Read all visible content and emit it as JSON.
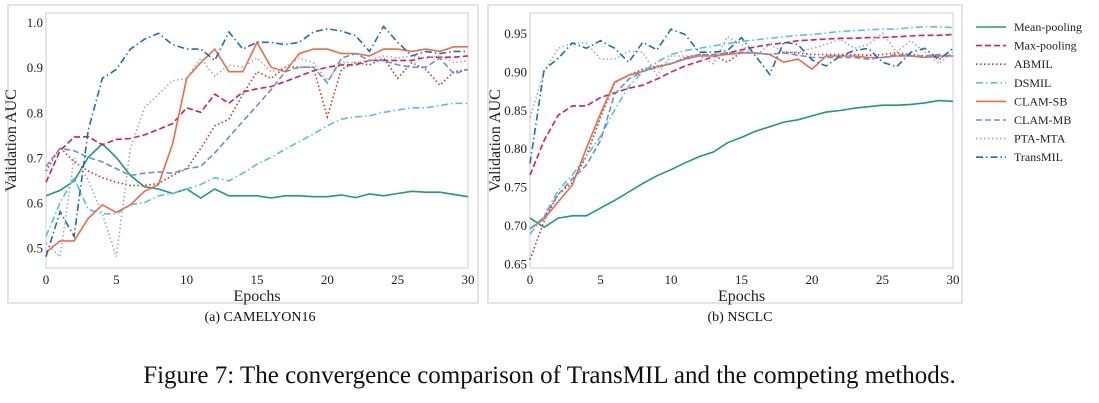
{
  "figure_caption": "Figure 7: The convergence comparison of TransMIL and the competing methods.",
  "legend": {
    "placement": "right",
    "entries": [
      "Mean-pooling",
      "Max-pooling",
      "ABMIL",
      "DSMIL",
      "CLAM-SB",
      "CLAM-MB",
      "PTA-MTA",
      "TransMIL"
    ]
  },
  "series_styles": [
    {
      "name": "Mean-pooling",
      "color": "#1d9a7f",
      "dash": "solid"
    },
    {
      "name": "Max-pooling",
      "color": "#d81b60",
      "dash": "dashed"
    },
    {
      "name": "ABMIL",
      "color": "#c0392b",
      "dash": "dotted"
    },
    {
      "name": "DSMIL",
      "color": "#5bc0e0",
      "dash": "dash-dot"
    },
    {
      "name": "CLAM-SB",
      "color": "#ef6c48",
      "dash": "solid"
    },
    {
      "name": "CLAM-MB",
      "color": "#6b8fd6",
      "dash": "dashed"
    },
    {
      "name": "PTA-MTA",
      "color": "#aaaaaa",
      "dash": "dotted"
    },
    {
      "name": "TransMIL",
      "color": "#1f6fae",
      "dash": "dash-dot"
    }
  ],
  "chart_data": [
    {
      "type": "line",
      "caption": "(a) CAMELYON16",
      "xlabel": "Epochs",
      "ylabel": "Validation AUC",
      "xlim": [
        0,
        30
      ],
      "ylim": [
        0.455,
        1.02
      ],
      "xticks": [
        "0",
        "5",
        "10",
        "15",
        "20",
        "25",
        "30"
      ],
      "yticks": [
        "0.5",
        "0.6",
        "0.7",
        "0.8",
        "0.9",
        "1.0"
      ],
      "grid": false,
      "x": [
        0,
        1,
        2,
        3,
        4,
        5,
        6,
        7,
        8,
        9,
        10,
        11,
        12,
        13,
        14,
        15,
        16,
        17,
        18,
        19,
        20,
        21,
        22,
        23,
        24,
        25,
        26,
        27,
        28,
        29,
        30
      ],
      "series": [
        {
          "name": "Mean-pooling",
          "values": [
            0.615,
            0.627,
            0.648,
            0.7,
            0.73,
            0.7,
            0.66,
            0.635,
            0.63,
            0.62,
            0.63,
            0.61,
            0.63,
            0.615,
            0.615,
            0.615,
            0.61,
            0.615,
            0.615,
            0.613,
            0.613,
            0.617,
            0.611,
            0.619,
            0.615,
            0.62,
            0.625,
            0.623,
            0.623,
            0.618,
            0.613
          ]
        },
        {
          "name": "Max-pooling",
          "values": [
            0.645,
            0.715,
            0.745,
            0.746,
            0.728,
            0.74,
            0.742,
            0.75,
            0.762,
            0.775,
            0.81,
            0.8,
            0.84,
            0.82,
            0.845,
            0.852,
            0.857,
            0.868,
            0.88,
            0.892,
            0.9,
            0.905,
            0.905,
            0.915,
            0.915,
            0.915,
            0.915,
            0.922,
            0.922,
            0.922,
            0.925
          ]
        },
        {
          "name": "ABMIL",
          "values": [
            0.67,
            0.722,
            0.69,
            0.67,
            0.655,
            0.645,
            0.638,
            0.638,
            0.642,
            0.66,
            0.675,
            0.72,
            0.77,
            0.785,
            0.84,
            0.89,
            0.875,
            0.9,
            0.9,
            0.9,
            0.79,
            0.895,
            0.91,
            0.905,
            0.92,
            0.875,
            0.91,
            0.895,
            0.86,
            0.89,
            0.895
          ]
        },
        {
          "name": "DSMIL",
          "values": [
            0.525,
            0.6,
            0.655,
            0.585,
            0.575,
            0.575,
            0.595,
            0.6,
            0.615,
            0.62,
            0.63,
            0.64,
            0.655,
            0.648,
            0.665,
            0.685,
            0.7,
            0.718,
            0.735,
            0.752,
            0.77,
            0.785,
            0.79,
            0.792,
            0.8,
            0.805,
            0.81,
            0.81,
            0.815,
            0.82,
            0.82
          ]
        },
        {
          "name": "CLAM-SB",
          "values": [
            0.49,
            0.515,
            0.515,
            0.565,
            0.595,
            0.578,
            0.595,
            0.625,
            0.64,
            0.73,
            0.875,
            0.91,
            0.94,
            0.89,
            0.89,
            0.955,
            0.9,
            0.89,
            0.93,
            0.94,
            0.94,
            0.93,
            0.93,
            0.925,
            0.94,
            0.94,
            0.935,
            0.94,
            0.935,
            0.945,
            0.945
          ]
        },
        {
          "name": "CLAM-MB",
          "values": [
            0.68,
            0.72,
            0.715,
            0.7,
            0.69,
            0.675,
            0.66,
            0.665,
            0.668,
            0.665,
            0.675,
            0.68,
            0.71,
            0.745,
            0.78,
            0.815,
            0.85,
            0.89,
            0.9,
            0.9,
            0.865,
            0.92,
            0.93,
            0.915,
            0.915,
            0.905,
            0.9,
            0.9,
            0.92,
            0.885,
            0.895
          ]
        },
        {
          "name": "PTA-MTA",
          "values": [
            0.51,
            0.48,
            0.7,
            0.65,
            0.575,
            0.48,
            0.72,
            0.81,
            0.84,
            0.87,
            0.875,
            0.92,
            0.88,
            0.905,
            0.9,
            0.92,
            0.89,
            0.9,
            0.92,
            0.91,
            0.87,
            0.91,
            0.91,
            0.915,
            0.925,
            0.92,
            0.925,
            0.92,
            0.925,
            0.91,
            0.915
          ]
        },
        {
          "name": "TransMIL",
          "values": [
            0.48,
            0.58,
            0.525,
            0.76,
            0.875,
            0.895,
            0.94,
            0.962,
            0.975,
            0.95,
            0.94,
            0.94,
            0.915,
            0.978,
            0.94,
            0.955,
            0.955,
            0.95,
            0.955,
            0.978,
            0.985,
            0.98,
            0.97,
            0.935,
            0.99,
            0.955,
            0.925,
            0.935,
            0.93,
            0.935,
            0.935
          ]
        }
      ]
    },
    {
      "type": "line",
      "caption": "(b) NSCLC",
      "xlabel": "Epochs",
      "ylabel": "Validation AUC",
      "xlim": [
        0,
        30
      ],
      "ylim": [
        0.644,
        0.976
      ],
      "xticks": [
        "0",
        "5",
        "10",
        "15",
        "20",
        "25",
        "30"
      ],
      "yticks": [
        "0.65",
        "0.70",
        "0.75",
        "0.80",
        "0.85",
        "0.90",
        "0.95"
      ],
      "grid": false,
      "x": [
        0,
        1,
        2,
        3,
        4,
        5,
        6,
        7,
        8,
        9,
        10,
        11,
        12,
        13,
        14,
        15,
        16,
        17,
        18,
        19,
        20,
        21,
        22,
        23,
        24,
        25,
        26,
        27,
        28,
        29,
        30
      ],
      "series": [
        {
          "name": "Mean-pooling",
          "values": [
            0.709,
            0.697,
            0.709,
            0.712,
            0.712,
            0.722,
            0.732,
            0.743,
            0.754,
            0.764,
            0.772,
            0.781,
            0.789,
            0.795,
            0.807,
            0.814,
            0.822,
            0.828,
            0.834,
            0.837,
            0.842,
            0.847,
            0.849,
            0.852,
            0.854,
            0.856,
            0.856,
            0.857,
            0.859,
            0.862,
            0.861
          ]
        },
        {
          "name": "Max-pooling",
          "values": [
            0.765,
            0.81,
            0.843,
            0.855,
            0.855,
            0.866,
            0.872,
            0.878,
            0.882,
            0.89,
            0.899,
            0.907,
            0.913,
            0.919,
            0.924,
            0.928,
            0.932,
            0.935,
            0.937,
            0.94,
            0.941,
            0.942,
            0.943,
            0.943,
            0.944,
            0.944,
            0.945,
            0.946,
            0.947,
            0.947,
            0.948
          ]
        },
        {
          "name": "ABMIL",
          "values": [
            0.655,
            0.705,
            0.74,
            0.755,
            0.79,
            0.84,
            0.885,
            0.895,
            0.903,
            0.907,
            0.91,
            0.918,
            0.922,
            0.921,
            0.912,
            0.925,
            0.924,
            0.922,
            0.925,
            0.924,
            0.922,
            0.922,
            0.922,
            0.922,
            0.921,
            0.922,
            0.924,
            0.922,
            0.92,
            0.918,
            0.921
          ]
        },
        {
          "name": "DSMIL",
          "values": [
            0.688,
            0.712,
            0.745,
            0.765,
            0.79,
            0.815,
            0.85,
            0.88,
            0.9,
            0.912,
            0.922,
            0.927,
            0.93,
            0.933,
            0.936,
            0.939,
            0.941,
            0.943,
            0.945,
            0.947,
            0.948,
            0.95,
            0.952,
            0.953,
            0.954,
            0.955,
            0.955,
            0.957,
            0.958,
            0.958,
            0.957
          ]
        },
        {
          "name": "CLAM-SB",
          "values": [
            0.695,
            0.708,
            0.73,
            0.752,
            0.8,
            0.845,
            0.886,
            0.895,
            0.9,
            0.906,
            0.91,
            0.916,
            0.92,
            0.92,
            0.922,
            0.924,
            0.924,
            0.922,
            0.912,
            0.916,
            0.903,
            0.92,
            0.92,
            0.92,
            0.918,
            0.918,
            0.92,
            0.92,
            0.918,
            0.92,
            0.92
          ]
        },
        {
          "name": "CLAM-MB",
          "values": [
            0.695,
            0.71,
            0.74,
            0.76,
            0.778,
            0.81,
            0.87,
            0.89,
            0.9,
            0.905,
            0.91,
            0.917,
            0.922,
            0.922,
            0.924,
            0.925,
            0.924,
            0.922,
            0.924,
            0.921,
            0.918,
            0.918,
            0.918,
            0.918,
            0.916,
            0.918,
            0.922,
            0.92,
            0.92,
            0.922,
            0.92
          ]
        },
        {
          "name": "PTA-MTA",
          "values": [
            0.84,
            0.9,
            0.93,
            0.937,
            0.937,
            0.916,
            0.916,
            0.926,
            0.925,
            0.895,
            0.92,
            0.92,
            0.92,
            0.91,
            0.945,
            0.935,
            0.92,
            0.935,
            0.925,
            0.925,
            0.93,
            0.935,
            0.942,
            0.93,
            0.935,
            0.95,
            0.925,
            0.94,
            0.925,
            0.91,
            0.925
          ]
        },
        {
          "name": "TransMIL",
          "values": [
            0.78,
            0.902,
            0.917,
            0.937,
            0.93,
            0.94,
            0.93,
            0.912,
            0.938,
            0.928,
            0.955,
            0.948,
            0.925,
            0.925,
            0.927,
            0.944,
            0.92,
            0.896,
            0.938,
            0.935,
            0.915,
            0.907,
            0.92,
            0.927,
            0.93,
            0.912,
            0.906,
            0.925,
            0.93,
            0.915,
            0.93
          ]
        }
      ]
    }
  ]
}
